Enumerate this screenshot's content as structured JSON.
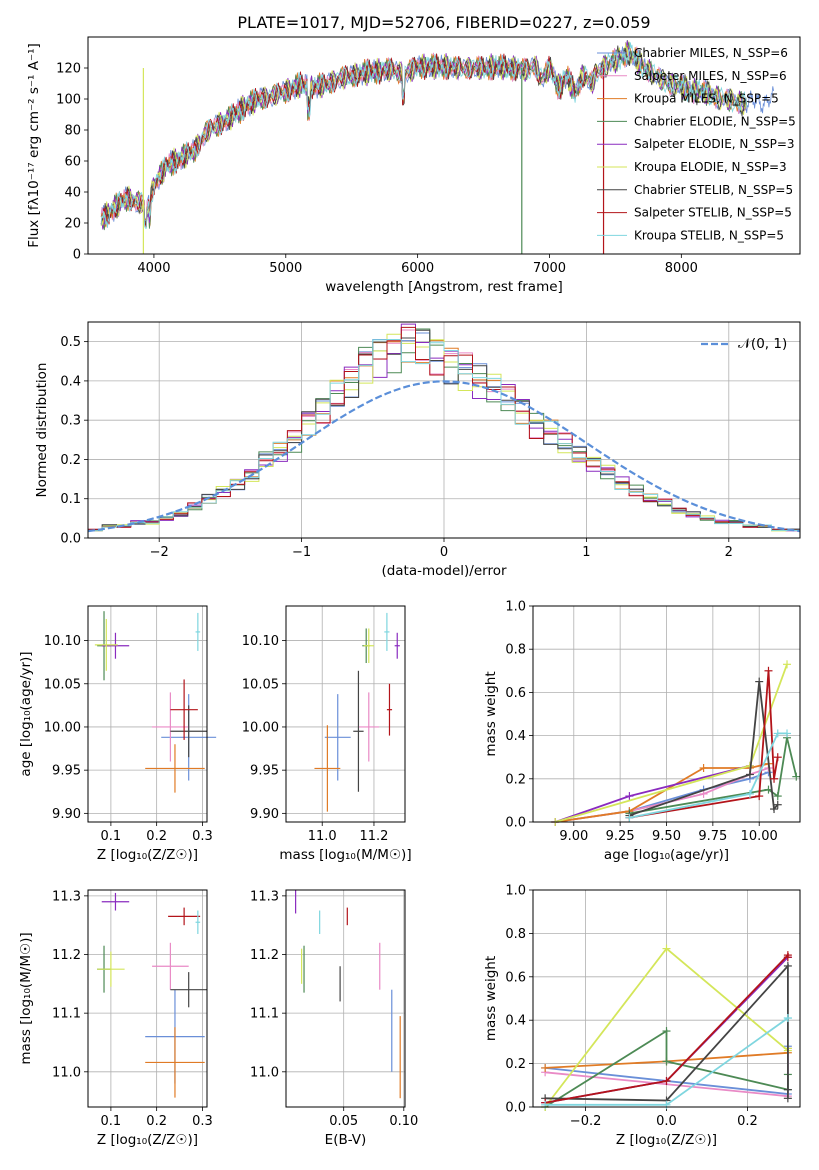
{
  "chart_data": [
    {
      "id": "spectrum",
      "type": "line",
      "title": "PLATE=1017, MJD=52706, FIBERID=0227, z=0.059",
      "xlabel": "wavelength [Angstrom, rest frame]",
      "ylabel": "Flux [fλ10⁻¹⁷ erg cm⁻² s⁻¹ A⁻¹]",
      "xlim": [
        3500,
        8900
      ],
      "ylim": [
        0,
        140
      ],
      "xticks": [
        4000,
        5000,
        6000,
        7000,
        8000
      ],
      "yticks": [
        0,
        20,
        40,
        60,
        80,
        100,
        120
      ],
      "grid": false,
      "legend_position": "upper right",
      "spectrum_x": [
        3600,
        3700,
        3800,
        3900,
        3950,
        4000,
        4100,
        4200,
        4300,
        4400,
        4500,
        4600,
        4700,
        4800,
        4900,
        5000,
        5100,
        5200,
        5300,
        5400,
        5500,
        5600,
        5700,
        5800,
        5900,
        6000,
        6100,
        6200,
        6300,
        6400,
        6500,
        6600,
        6700,
        6800,
        6900,
        7000,
        7100,
        7200,
        7300,
        7400,
        7500,
        7600,
        7700,
        7800,
        7900,
        8000,
        8100,
        8200,
        8300,
        8400,
        8500,
        8600,
        8700
      ],
      "spectrum_y": [
        22,
        30,
        36,
        33,
        28,
        45,
        57,
        62,
        66,
        79,
        84,
        89,
        96,
        100,
        102,
        105,
        109,
        108,
        109,
        113,
        115,
        117,
        118,
        119,
        116,
        121,
        121,
        121,
        120,
        120,
        120,
        121,
        120,
        119,
        118,
        116,
        110,
        109,
        113,
        120,
        125,
        130,
        122,
        115,
        110,
        108,
        105,
        104,
        100,
        99,
        96,
        99,
        100
      ],
      "series": [
        {
          "name": "Chabrier MILES, N_SSP=6",
          "color": "#6a8fd8"
        },
        {
          "name": "Salpeter MILES, N_SSP=6",
          "color": "#e98ac6"
        },
        {
          "name": "Kroupa MILES, N_SSP=5",
          "color": "#e07b26"
        },
        {
          "name": "Chabrier ELODIE, N_SSP=5",
          "color": "#4d8a55"
        },
        {
          "name": "Salpeter ELODIE, N_SSP=3",
          "color": "#8a2bbf"
        },
        {
          "name": "Kroupa ELODIE, N_SSP=3",
          "color": "#d4e65a"
        },
        {
          "name": "Chabrier STELIB, N_SSP=5",
          "color": "#444444"
        },
        {
          "name": "Salpeter STELIB, N_SSP=5",
          "color": "#b3141a"
        },
        {
          "name": "Kroupa STELIB, N_SSP=5",
          "color": "#7fd6df"
        }
      ]
    },
    {
      "id": "residuals",
      "type": "line",
      "xlabel": "(data-model)/error",
      "ylabel": "Normed distribution",
      "xlim": [
        -2.5,
        2.5
      ],
      "ylim": [
        0,
        0.55
      ],
      "xticks": [
        -2,
        -1,
        0,
        1,
        2
      ],
      "yticks": [
        0.0,
        0.1,
        0.2,
        0.3,
        0.4,
        0.5
      ],
      "grid": true,
      "legend": "𝒩(0, 1)",
      "legend_position": "upper right",
      "bin_width": 0.1,
      "hist_values": [
        0.02,
        0.03,
        0.03,
        0.04,
        0.04,
        0.05,
        0.06,
        0.08,
        0.1,
        0.12,
        0.14,
        0.16,
        0.2,
        0.22,
        0.25,
        0.3,
        0.33,
        0.37,
        0.4,
        0.45,
        0.47,
        0.48,
        0.5,
        0.49,
        0.47,
        0.45,
        0.43,
        0.4,
        0.38,
        0.36,
        0.33,
        0.29,
        0.27,
        0.24,
        0.21,
        0.19,
        0.17,
        0.14,
        0.12,
        0.1,
        0.09,
        0.07,
        0.06,
        0.05,
        0.04,
        0.04,
        0.03,
        0.03,
        0.02,
        0.02
      ]
    },
    {
      "id": "age_vs_Z",
      "type": "scatter",
      "xlabel": "Z [log₁₀(Z/Z☉)]",
      "ylabel": "age  [log₁₀(age/yr)]",
      "xlim": [
        0.05,
        0.31
      ],
      "ylim": [
        9.89,
        10.14
      ],
      "xticks": [
        0.1,
        0.2,
        0.3
      ],
      "yticks": [
        9.9,
        9.95,
        10.0,
        10.05,
        10.1
      ],
      "grid": true,
      "points": [
        {
          "x": 0.27,
          "y": 9.988,
          "xerr": 0.06,
          "yerr": 0.05
        },
        {
          "x": 0.23,
          "y": 10.0,
          "xerr": 0.04,
          "yerr": 0.04
        },
        {
          "x": 0.24,
          "y": 9.952,
          "xerr": 0.065,
          "yerr": 0.028
        },
        {
          "x": 0.085,
          "y": 10.094,
          "xerr": 0.015,
          "yerr": 0.04
        },
        {
          "x": 0.11,
          "y": 10.094,
          "xerr": 0.03,
          "yerr": 0.015
        },
        {
          "x": 0.09,
          "y": 10.095,
          "xerr": 0.025,
          "yerr": 0.03
        },
        {
          "x": 0.27,
          "y": 9.995,
          "xerr": 0.04,
          "yerr": 0.03
        },
        {
          "x": 0.26,
          "y": 10.02,
          "xerr": 0.03,
          "yerr": 0.035
        },
        {
          "x": 0.29,
          "y": 10.11,
          "xerr": 0.005,
          "yerr": 0.022
        }
      ]
    },
    {
      "id": "age_vs_mass",
      "type": "scatter",
      "xlabel": "mass [log₁₀(M/M☉)]",
      "ylabel": "",
      "xlim": [
        10.86,
        11.32
      ],
      "ylim": [
        9.89,
        10.14
      ],
      "xticks": [
        11.0,
        11.2
      ],
      "yticks": [
        9.9,
        9.95,
        10.0,
        10.05,
        10.1
      ],
      "grid": true,
      "points": [
        {
          "x": 11.06,
          "y": 9.988,
          "xerr": 0.05,
          "yerr": 0.05
        },
        {
          "x": 11.18,
          "y": 10.0,
          "xerr": 0.04,
          "yerr": 0.04
        },
        {
          "x": 11.02,
          "y": 9.952,
          "xerr": 0.05,
          "yerr": 0.05
        },
        {
          "x": 11.17,
          "y": 10.094,
          "xerr": 0.015,
          "yerr": 0.02
        },
        {
          "x": 11.29,
          "y": 10.094,
          "xerr": 0.01,
          "yerr": 0.015
        },
        {
          "x": 11.18,
          "y": 10.094,
          "xerr": 0.02,
          "yerr": 0.02
        },
        {
          "x": 11.14,
          "y": 9.995,
          "xerr": 0.02,
          "yerr": 0.07
        },
        {
          "x": 11.26,
          "y": 10.02,
          "xerr": 0.01,
          "yerr": 0.03
        },
        {
          "x": 11.25,
          "y": 10.11,
          "xerr": 0.01,
          "yerr": 0.022
        }
      ]
    },
    {
      "id": "massweight_vs_age",
      "type": "line",
      "xlabel": "age  [log₁₀(age/yr)]",
      "ylabel": "mass weight",
      "xlim": [
        8.78,
        10.22
      ],
      "ylim": [
        0.0,
        1.0
      ],
      "xticks": [
        9.0,
        9.25,
        9.5,
        9.75,
        10.0
      ],
      "yticks": [
        0.0,
        0.2,
        0.4,
        0.6,
        0.8,
        1.0
      ],
      "grid": true,
      "series_lines": [
        {
          "x": [
            8.9,
            9.3,
            9.7,
            9.95,
            10.05
          ],
          "y": [
            0.0,
            0.05,
            0.15,
            0.2,
            0.23
          ]
        },
        {
          "x": [
            8.9,
            9.3,
            9.7,
            9.95,
            10.05
          ],
          "y": [
            0.0,
            0.05,
            0.13,
            0.22,
            0.25
          ]
        },
        {
          "x": [
            8.9,
            9.3,
            9.7,
            9.95,
            10.05
          ],
          "y": [
            0.0,
            0.05,
            0.25,
            0.25,
            0.27
          ]
        },
        {
          "x": [
            9.3,
            10.05,
            10.1,
            10.15,
            10.2
          ],
          "y": [
            0.04,
            0.15,
            0.12,
            0.39,
            0.21
          ]
        },
        {
          "x": [
            8.9,
            9.3,
            9.95
          ],
          "y": [
            0.0,
            0.12,
            0.26
          ]
        },
        {
          "x": [
            8.9,
            9.95,
            10.15
          ],
          "y": [
            0.0,
            0.26,
            0.73
          ]
        },
        {
          "x": [
            9.3,
            9.95,
            10.0,
            10.08,
            10.1
          ],
          "y": [
            0.03,
            0.22,
            0.65,
            0.06,
            0.08
          ]
        },
        {
          "x": [
            9.3,
            10.0,
            10.05,
            10.08,
            10.1
          ],
          "y": [
            0.02,
            0.12,
            0.7,
            0.2,
            0.3
          ]
        },
        {
          "x": [
            9.3,
            9.95,
            10.1,
            10.15
          ],
          "y": [
            0.02,
            0.13,
            0.41,
            0.41
          ]
        }
      ]
    },
    {
      "id": "mass_vs_Z",
      "type": "scatter",
      "xlabel": "Z [log₁₀(Z/Z☉)]",
      "ylabel": "mass [log₁₀(M/M☉)]",
      "xlim": [
        0.05,
        0.31
      ],
      "ylim": [
        10.94,
        11.31
      ],
      "xticks": [
        0.1,
        0.2,
        0.3
      ],
      "yticks": [
        11.0,
        11.1,
        11.2,
        11.3
      ],
      "grid": true,
      "points": [
        {
          "x": 0.24,
          "y": 11.06,
          "xerr": 0.065,
          "yerr": 0.08
        },
        {
          "x": 0.23,
          "y": 11.18,
          "xerr": 0.04,
          "yerr": 0.04
        },
        {
          "x": 0.24,
          "y": 11.016,
          "xerr": 0.065,
          "yerr": 0.06
        },
        {
          "x": 0.085,
          "y": 11.175,
          "xerr": 0.015,
          "yerr": 0.04
        },
        {
          "x": 0.11,
          "y": 11.29,
          "xerr": 0.03,
          "yerr": 0.015
        },
        {
          "x": 0.1,
          "y": 11.175,
          "xerr": 0.03,
          "yerr": 0.03
        },
        {
          "x": 0.27,
          "y": 11.14,
          "xerr": 0.04,
          "yerr": 0.03
        },
        {
          "x": 0.26,
          "y": 11.265,
          "xerr": 0.035,
          "yerr": 0.015
        },
        {
          "x": 0.29,
          "y": 11.255,
          "xerr": 0.005,
          "yerr": 0.02
        }
      ]
    },
    {
      "id": "mass_vs_EBV",
      "type": "scatter",
      "xlabel": "E(B-V)",
      "ylabel": "",
      "xlim": [
        0.002,
        0.101
      ],
      "ylim": [
        10.94,
        11.31
      ],
      "xticks": [
        0.05,
        0.1
      ],
      "yticks": [
        11.0,
        11.1,
        11.2,
        11.3
      ],
      "grid": true,
      "points": [
        {
          "x": 0.09,
          "y": 11.07,
          "xerr": 0.0,
          "yerr": 0.07
        },
        {
          "x": 0.08,
          "y": 11.18,
          "xerr": 0.0,
          "yerr": 0.04
        },
        {
          "x": 0.097,
          "y": 11.025,
          "xerr": 0.0,
          "yerr": 0.07
        },
        {
          "x": 0.017,
          "y": 11.175,
          "xerr": 0.0,
          "yerr": 0.04
        },
        {
          "x": 0.01,
          "y": 11.29,
          "xerr": 0.0,
          "yerr": 0.02
        },
        {
          "x": 0.015,
          "y": 11.18,
          "xerr": 0.0,
          "yerr": 0.03
        },
        {
          "x": 0.047,
          "y": 11.15,
          "xerr": 0.0,
          "yerr": 0.03
        },
        {
          "x": 0.053,
          "y": 11.265,
          "xerr": 0.0,
          "yerr": 0.015
        },
        {
          "x": 0.03,
          "y": 11.255,
          "xerr": 0.0,
          "yerr": 0.02
        }
      ]
    },
    {
      "id": "massweight_vs_Z",
      "type": "line",
      "xlabel": "Z [log₁₀(Z/Z☉)]",
      "ylabel": "mass weight",
      "xlim": [
        -0.33,
        0.33
      ],
      "ylim": [
        0.0,
        1.0
      ],
      "xticks": [
        -0.2,
        0.0,
        0.2
      ],
      "yticks": [
        0.0,
        0.2,
        0.4,
        0.6,
        0.8,
        1.0
      ],
      "grid": true,
      "series_lines": [
        {
          "x": [
            -0.3,
            0.3,
            0.3
          ],
          "y": [
            0.18,
            0.06,
            0.28
          ]
        },
        {
          "x": [
            -0.3,
            0.3,
            0.3
          ],
          "y": [
            0.16,
            0.05,
            0.27
          ]
        },
        {
          "x": [
            -0.3,
            0.0,
            0.3
          ],
          "y": [
            0.18,
            0.21,
            0.25
          ]
        },
        {
          "x": [
            -0.3,
            0.0,
            0.0,
            0.3,
            0.3
          ],
          "y": [
            0.0,
            0.35,
            0.21,
            0.08,
            0.15
          ]
        },
        {
          "x": [
            -0.3,
            0.0,
            0.3
          ],
          "y": [
            0.02,
            0.12,
            0.69
          ]
        },
        {
          "x": [
            -0.3,
            0.0,
            0.3,
            0.3
          ],
          "y": [
            0.0,
            0.73,
            0.26,
            0.27
          ]
        },
        {
          "x": [
            -0.3,
            0.0,
            0.3,
            0.3,
            0.3
          ],
          "y": [
            0.04,
            0.03,
            0.65,
            0.08,
            0.04
          ]
        },
        {
          "x": [
            -0.3,
            0.0,
            0.3,
            0.3
          ],
          "y": [
            0.02,
            0.12,
            0.7,
            0.69
          ]
        },
        {
          "x": [
            -0.3,
            0.0,
            0.3,
            0.3
          ],
          "y": [
            0.01,
            0.01,
            0.41,
            0.41
          ]
        }
      ]
    }
  ]
}
